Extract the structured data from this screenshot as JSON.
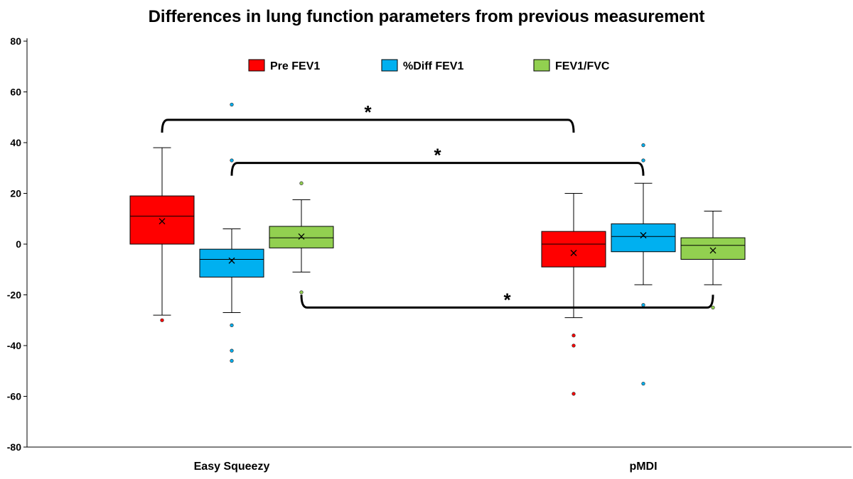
{
  "chart_data": {
    "type": "box",
    "title": "Differences in lung function parameters from previous measurement",
    "xlabel": "",
    "ylabel": "",
    "ylim": [
      -80,
      80
    ],
    "y_ticks": [
      80,
      60,
      40,
      20,
      0,
      -20,
      -40,
      -60,
      -80
    ],
    "grid": false,
    "legend_position": "top",
    "categories": [
      "Easy Squeezy",
      "pMDI"
    ],
    "series": [
      {
        "name": "Pre FEV1",
        "color": "#ff0000",
        "boxes": [
          {
            "whisker_low": -28,
            "q1": 0,
            "median": 11,
            "q3": 19,
            "whisker_high": 38,
            "mean": 9,
            "outliers": [
              -30
            ]
          },
          {
            "whisker_low": -29,
            "q1": -9,
            "median": 0,
            "q3": 5,
            "whisker_high": 20,
            "mean": -3.5,
            "outliers": [
              -36,
              -40,
              -59
            ]
          }
        ]
      },
      {
        "name": "%Diff FEV1",
        "color": "#00b0f0",
        "boxes": [
          {
            "whisker_low": -27,
            "q1": -13,
            "median": -6,
            "q3": -2,
            "whisker_high": 6,
            "mean": -6.5,
            "outliers": [
              55,
              33,
              -32,
              -42,
              -46
            ]
          },
          {
            "whisker_low": -16,
            "q1": -3,
            "median": 3,
            "q3": 8,
            "whisker_high": 24,
            "mean": 3.5,
            "outliers": [
              39,
              33,
              -24,
              -55
            ]
          }
        ]
      },
      {
        "name": "FEV1/FVC",
        "color": "#92d050",
        "boxes": [
          {
            "whisker_low": -11,
            "q1": -1.5,
            "median": 2.5,
            "q3": 7,
            "whisker_high": 17.5,
            "mean": 3,
            "outliers": [
              24,
              -19
            ]
          },
          {
            "whisker_low": -16,
            "q1": -6,
            "median": -0.5,
            "q3": 2.5,
            "whisker_high": 13,
            "mean": -2.5,
            "outliers": [
              -25
            ]
          }
        ]
      }
    ],
    "annotations": [
      {
        "text": "*",
        "from": [
          0,
          0
        ],
        "to": [
          1,
          0
        ],
        "y": 49,
        "direction": "down"
      },
      {
        "text": "*",
        "from": [
          0,
          1
        ],
        "to": [
          1,
          1
        ],
        "y": 32,
        "direction": "down"
      },
      {
        "text": "*",
        "from": [
          0,
          2
        ],
        "to": [
          1,
          2
        ],
        "y": -25,
        "direction": "up"
      }
    ]
  }
}
